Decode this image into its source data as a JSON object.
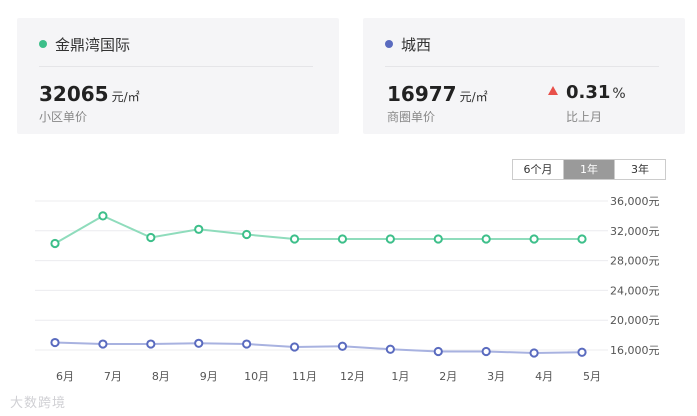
{
  "cards": {
    "community": {
      "name": "金鼎湾国际",
      "dot_color": "#3dbf8a",
      "price": "32065",
      "unit": "元/㎡",
      "sub_label": "小区单价"
    },
    "district": {
      "name": "城西",
      "dot_color": "#5a6bbf",
      "price": "16977",
      "unit": "元/㎡",
      "sub_label": "商圈单价",
      "change": "0.31",
      "change_unit": "%",
      "change_label": "比上月",
      "change_color": "#e8504a"
    }
  },
  "range_options": [
    {
      "label": "6个月",
      "active": false
    },
    {
      "label": "1年",
      "active": true
    },
    {
      "label": "3年",
      "active": false
    }
  ],
  "watermark": "大数跨境",
  "chart_data": {
    "type": "line",
    "categories": [
      "6月",
      "7月",
      "8月",
      "9月",
      "10月",
      "11月",
      "12月",
      "1月",
      "2月",
      "3月",
      "4月",
      "5月"
    ],
    "series": [
      {
        "color": "#3dbf8a",
        "line_color": "#8fdcbc",
        "values": [
          30300,
          34000,
          31100,
          32200,
          31500,
          30900,
          30900,
          30900,
          30900,
          30900,
          30900,
          30900
        ]
      },
      {
        "color": "#5a6bbf",
        "line_color": "#a8b2e0",
        "values": [
          17000,
          16800,
          16800,
          16900,
          16800,
          16400,
          16500,
          16100,
          15800,
          15800,
          15600,
          15700
        ]
      }
    ],
    "y_ticks": [
      {
        "value": 36000,
        "label": "36,000元"
      },
      {
        "value": 32000,
        "label": "32,000元"
      },
      {
        "value": 28000,
        "label": "28,000元"
      },
      {
        "value": 24000,
        "label": "24,000元"
      },
      {
        "value": 20000,
        "label": "20,000元"
      },
      {
        "value": 16000,
        "label": "16,000元"
      }
    ],
    "ylim": [
      16000,
      36000
    ],
    "grid": true,
    "legend": "none"
  }
}
